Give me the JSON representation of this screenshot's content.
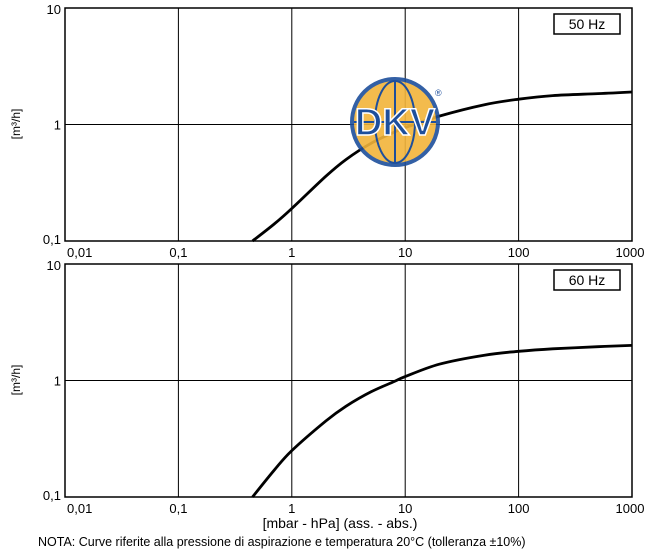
{
  "chart_data": [
    {
      "type": "line",
      "badge": "50 Hz",
      "ylabel": "[m³/h]",
      "xlabel": "",
      "x_scale": "log",
      "y_scale": "log",
      "xlim": [
        0.01,
        1000
      ],
      "ylim": [
        0.1,
        10
      ],
      "x_ticks": [
        "0,01",
        "0,1",
        "1",
        "10",
        "100",
        "1000"
      ],
      "y_ticks": [
        "0,1",
        "1",
        "10"
      ],
      "grid": true,
      "series": [
        {
          "x": [
            0.45,
            0.7,
            1.0,
            2.0,
            3.0,
            5.0,
            8.0,
            10,
            20,
            50,
            100,
            200,
            500,
            1000
          ],
          "y": [
            0.1,
            0.14,
            0.19,
            0.36,
            0.5,
            0.69,
            0.86,
            0.94,
            1.18,
            1.48,
            1.65,
            1.77,
            1.84,
            1.9
          ]
        }
      ]
    },
    {
      "type": "line",
      "badge": "60 Hz",
      "ylabel": "[m³/h]",
      "xlabel": "[mbar - hPa] (ass. - abs.)",
      "x_scale": "log",
      "y_scale": "log",
      "xlim": [
        0.01,
        1000
      ],
      "ylim": [
        0.1,
        10
      ],
      "x_ticks": [
        "0,01",
        "0,1",
        "1",
        "10",
        "100",
        "1000"
      ],
      "y_ticks": [
        "0,1",
        "1",
        "10"
      ],
      "grid": true,
      "series": [
        {
          "x": [
            0.45,
            0.7,
            1.0,
            2.0,
            3.0,
            5.0,
            8.0,
            10,
            20,
            50,
            100,
            200,
            500,
            1000
          ],
          "y": [
            0.1,
            0.17,
            0.25,
            0.45,
            0.6,
            0.8,
            0.98,
            1.08,
            1.38,
            1.65,
            1.78,
            1.87,
            1.95,
            2.0
          ]
        }
      ]
    }
  ],
  "logo": {
    "text": "DKV",
    "registered": "®",
    "colors": {
      "outer": "#1e4f9c",
      "inner": "#f2b43a",
      "text": "#1e4f9c"
    }
  },
  "note": "NOTA:  Curve riferite alla pressione di aspirazione e temperatura 20°C (tolleranza ±10%)"
}
